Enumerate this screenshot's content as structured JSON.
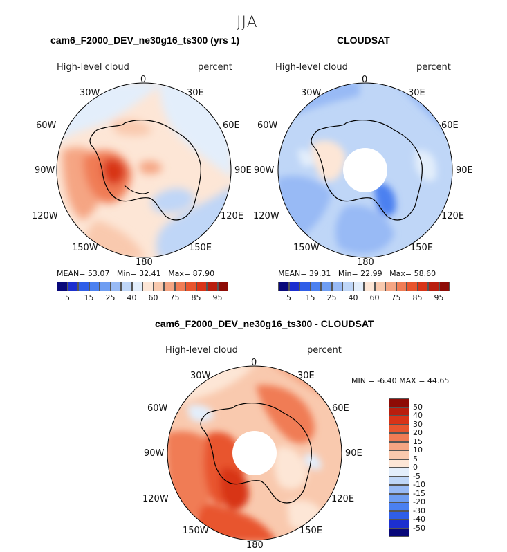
{
  "figure": {
    "season": "JJA",
    "variable": "High-level cloud",
    "units": "percent"
  },
  "panels": {
    "model": {
      "title": "cam6_F2000_DEV_ne30g16_ts300 (yrs 1)",
      "subtitle_left": "High-level cloud",
      "subtitle_right": "percent",
      "stats": {
        "mean_label": "MEAN=",
        "mean": "53.07",
        "min_label": "Min=",
        "min": "32.41",
        "max_label": "Max=",
        "max": "87.90"
      }
    },
    "obs": {
      "title": "CLOUDSAT",
      "subtitle_left": "High-level cloud",
      "subtitle_right": "percent",
      "stats": {
        "mean_label": "MEAN=",
        "mean": "39.31",
        "min_label": "Min=",
        "min": "22.99",
        "max_label": "Max=",
        "max": "58.60"
      }
    },
    "diff": {
      "title": "cam6_F2000_DEV_ne30g16_ts300 - CLOUDSAT",
      "subtitle_left": "High-level cloud",
      "subtitle_right": "percent",
      "stats": {
        "min_label": "MIN =",
        "min": "-6.40",
        "max_label": "MAX =",
        "max": "44.65"
      }
    }
  },
  "longitude_labels": {
    "n0": "0",
    "e30": "30E",
    "e60": "60E",
    "e90": "90E",
    "e120": "120E",
    "e150": "150E",
    "s180": "180",
    "w150": "150W",
    "w120": "120W",
    "w90": "90W",
    "w60": "60W",
    "w30": "30W"
  },
  "colorbar_abs": {
    "ticks": [
      "5",
      "15",
      "25",
      "40",
      "60",
      "75",
      "85",
      "95"
    ],
    "colors": [
      "#08087a",
      "#1c2fd0",
      "#2f5ee8",
      "#4b80f0",
      "#6e9df2",
      "#98baf5",
      "#bfd6f7",
      "#e3eefb",
      "#fde6d6",
      "#f9c9ae",
      "#f5a583",
      "#f07c55",
      "#e8552e",
      "#d83418",
      "#b91e0e",
      "#8e0b06"
    ]
  },
  "colorbar_diff": {
    "ticks": [
      "50",
      "40",
      "30",
      "20",
      "15",
      "10",
      "5",
      "0",
      "-5",
      "-10",
      "-15",
      "-20",
      "-30",
      "-40",
      "-50"
    ],
    "colors": [
      "#8e0b06",
      "#b91e0e",
      "#d83418",
      "#e8552e",
      "#f07c55",
      "#f5a583",
      "#f9c9ae",
      "#fde6d6",
      "#e3eefb",
      "#bfd6f7",
      "#98baf5",
      "#6e9df2",
      "#4b80f0",
      "#2f5ee8",
      "#1c2fd0",
      "#08087a"
    ]
  },
  "chart_data": [
    {
      "type": "heatmap",
      "projection": "south-polar-stereographic",
      "title": "cam6_F2000_DEV_ne30g16_ts300 (yrs 1)",
      "variable": "High-level cloud (percent)",
      "mean": 53.07,
      "min": 32.41,
      "max": 87.9,
      "contour_levels": [
        5,
        10,
        15,
        20,
        25,
        30,
        35,
        40,
        45,
        50,
        55,
        60,
        65,
        70,
        75,
        80,
        85,
        90,
        95
      ]
    },
    {
      "type": "heatmap",
      "projection": "south-polar-stereographic",
      "title": "CLOUDSAT",
      "variable": "High-level cloud (percent)",
      "mean": 39.31,
      "min": 22.99,
      "max": 58.6,
      "contour_levels": [
        5,
        10,
        15,
        20,
        25,
        30,
        35,
        40,
        45,
        50,
        55,
        60,
        65,
        70,
        75,
        80,
        85,
        90,
        95
      ]
    },
    {
      "type": "heatmap",
      "projection": "south-polar-stereographic",
      "title": "cam6_F2000_DEV_ne30g16_ts300 - CLOUDSAT",
      "variable": "High-level cloud (percent)",
      "min": -6.4,
      "max": 44.65,
      "contour_levels": [
        -50,
        -40,
        -30,
        -20,
        -15,
        -10,
        -5,
        0,
        5,
        10,
        15,
        20,
        30,
        40,
        50
      ]
    }
  ]
}
